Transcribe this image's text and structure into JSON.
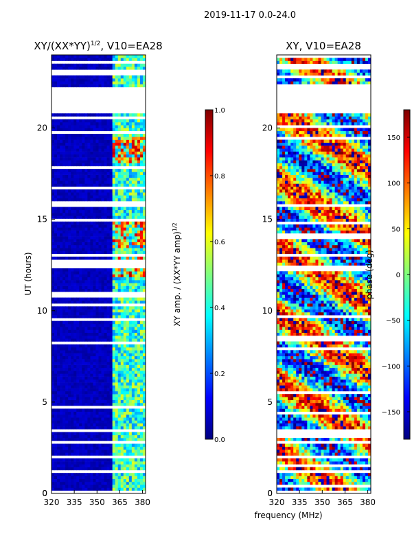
{
  "suptitle": "2019-11-17 0.0-24.0",
  "colors": {
    "background": "#ffffff",
    "jet": [
      "#00007f",
      "#0000ff",
      "#007fff",
      "#00ffff",
      "#7fff7f",
      "#ffff00",
      "#ff7f00",
      "#ff0000",
      "#7f0000"
    ],
    "blank_row": "#ffffff"
  },
  "chart_data": [
    {
      "type": "heatmap",
      "title": "XY/(XX*YY)",
      "title_exp": "1/2",
      "title_suffix": ", V10=EA28",
      "xlabel": "",
      "ylabel": "UT (hours)",
      "xlim": [
        320,
        382
      ],
      "ylim": [
        0,
        24
      ],
      "xticks": [
        320,
        335,
        350,
        365,
        380
      ],
      "yticks": [
        0,
        5,
        10,
        15,
        20
      ],
      "colorbar": {
        "label": "XY amp. / (XX*YY amp)",
        "label_exp": "1/2",
        "range": [
          0.0,
          1.0
        ],
        "ticks": [
          "0.0",
          "0.2",
          "0.4",
          "0.6",
          "0.8",
          "1.0"
        ],
        "tick_values": [
          0.0,
          0.2,
          0.4,
          0.6,
          0.8,
          1.0
        ]
      },
      "gap_hours": [
        [
          20.8,
          22.2
        ]
      ],
      "bright_band_mhz": [
        360,
        382
      ],
      "strong_features_hours": [
        12.5,
        14.2,
        18.8
      ]
    },
    {
      "type": "heatmap",
      "title": "XY, V10=EA28",
      "xlabel": "frequency (MHz)",
      "ylabel": "",
      "xlim": [
        320,
        382
      ],
      "ylim": [
        0,
        24
      ],
      "xticks": [
        320,
        335,
        350,
        365,
        380
      ],
      "yticks": [
        0,
        5,
        10,
        15,
        20
      ],
      "colorbar": {
        "label": "phase (deg)",
        "range": [
          -180,
          180
        ],
        "ticks": [
          "150",
          "100",
          "50",
          "0",
          "−50",
          "−100",
          "−150"
        ],
        "tick_values": [
          150,
          100,
          50,
          0,
          -50,
          -100,
          -150
        ]
      },
      "gap_hours": [
        [
          20.8,
          22.2
        ]
      ]
    }
  ]
}
